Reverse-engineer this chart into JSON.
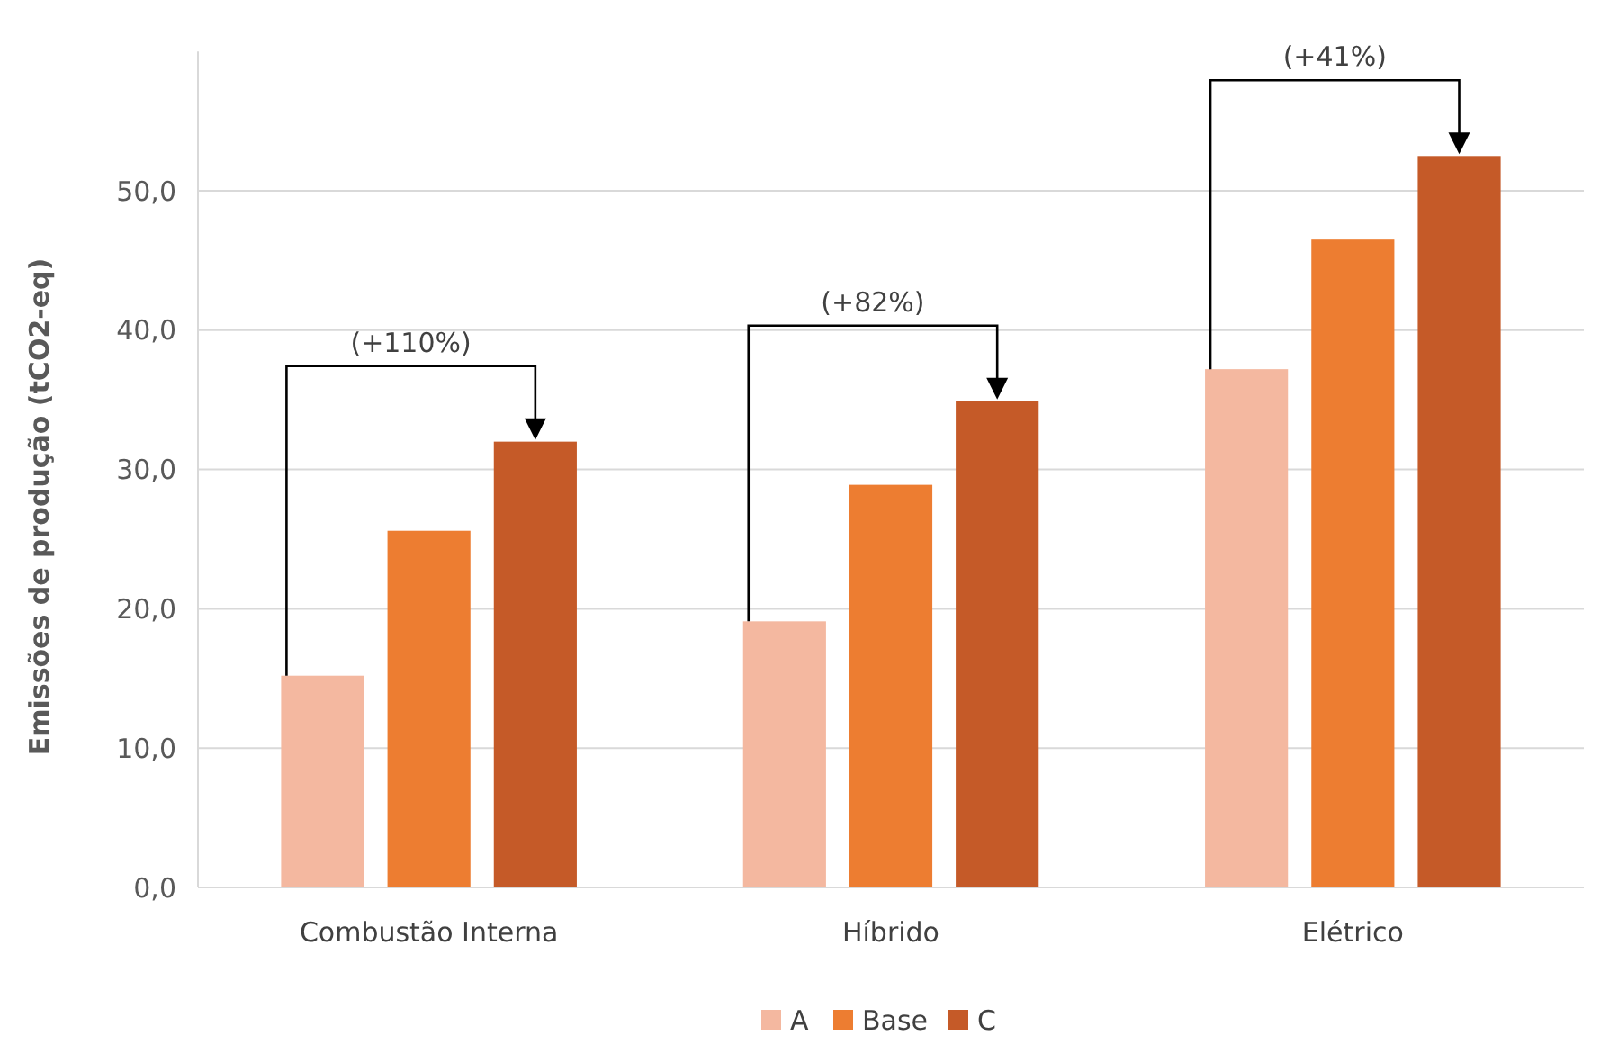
{
  "chart_data": {
    "type": "bar",
    "ylabel": "Emissões de produção (tCO2-eq)",
    "categories": [
      "Combustão Interna",
      "Híbrido",
      "Elétrico"
    ],
    "series": [
      {
        "name": "A",
        "color": "#f4b8a0",
        "values": [
          15.2,
          19.1,
          37.2
        ]
      },
      {
        "name": "Base",
        "color": "#ed7d31",
        "values": [
          25.6,
          28.9,
          46.5
        ]
      },
      {
        "name": "C",
        "color": "#c55a28",
        "values": [
          32.0,
          34.9,
          52.5
        ]
      }
    ],
    "ylim": [
      0,
      60
    ],
    "yticks": [
      {
        "value": 0,
        "label": "0,0"
      },
      {
        "value": 10,
        "label": "10,0"
      },
      {
        "value": 20,
        "label": "20,0"
      },
      {
        "value": 30,
        "label": "30,0"
      },
      {
        "value": 40,
        "label": "40,0"
      },
      {
        "value": 50,
        "label": "50,0"
      }
    ],
    "grid": "y",
    "legend": "bottom",
    "annotations": [
      "(+110%)",
      "(+82%)",
      "(+41%)"
    ]
  }
}
